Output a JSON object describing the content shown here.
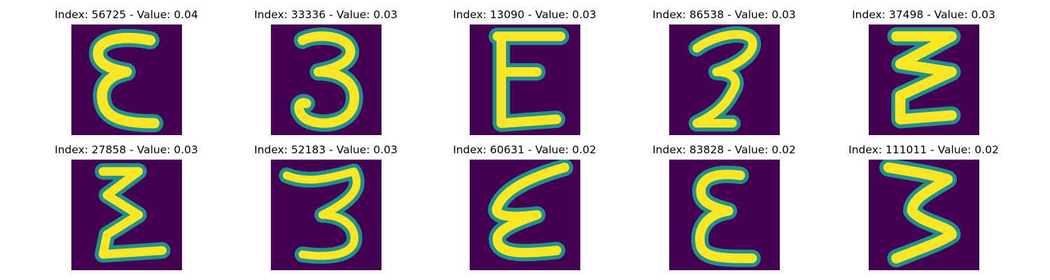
{
  "colors": {
    "background": "#440154",
    "mid": "#21918c",
    "high": "#fde725",
    "edge_low": "#3b528b",
    "edge_high": "#5ec962"
  },
  "panels": [
    {
      "title": "Index: 56725 - Value: 0.04",
      "glyph": "ε"
    },
    {
      "title": "Index: 33336 - Value: 0.03",
      "glyph": "3"
    },
    {
      "title": "Index: 13090 - Value: 0.03",
      "glyph": "E"
    },
    {
      "title": "Index: 86538 - Value: 0.03",
      "glyph": "3"
    },
    {
      "title": "Index: 37498 - Value: 0.03",
      "glyph": "ξ"
    },
    {
      "title": "Index: 27858 - Value: 0.03",
      "glyph": "ξ"
    },
    {
      "title": "Index: 52183 - Value: 0.03",
      "glyph": "3"
    },
    {
      "title": "Index: 60631 - Value: 0.02",
      "glyph": "ε"
    },
    {
      "title": "Index: 83828 - Value: 0.02",
      "glyph": "ε"
    },
    {
      "title": "Index: 111011 - Value: 0.02",
      "glyph": "3"
    }
  ]
}
